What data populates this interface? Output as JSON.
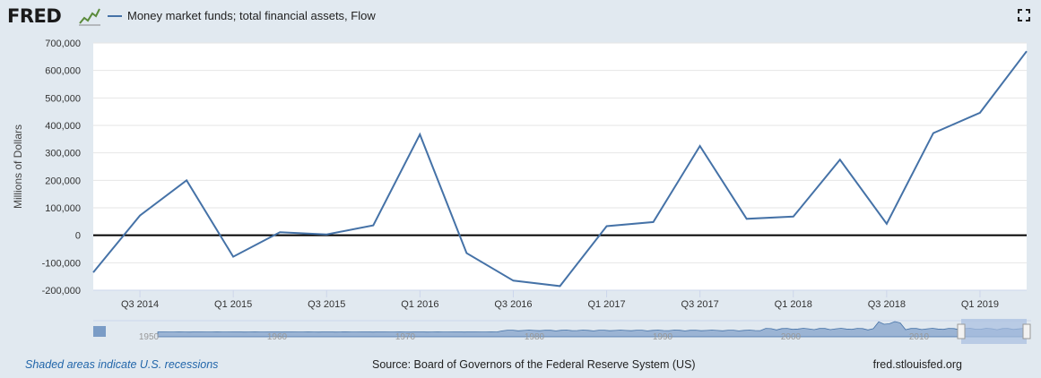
{
  "header": {
    "logo_text": "FRED",
    "legend_label": "Money market funds; total financial assets, Flow",
    "series_color": "#4572a7"
  },
  "chart_data": {
    "type": "line",
    "title": "",
    "ylabel": "Millions of Dollars",
    "ylim": [
      -200000,
      700000
    ],
    "yticks": [
      -200000,
      -100000,
      0,
      100000,
      200000,
      300000,
      400000,
      500000,
      600000,
      700000
    ],
    "ytick_labels": [
      "-200,000",
      "-100,000",
      "0",
      "100,000",
      "200,000",
      "300,000",
      "400,000",
      "500,000",
      "600,000",
      "700,000"
    ],
    "xtick_labels": [
      "Q3 2014",
      "Q1 2015",
      "Q3 2015",
      "Q1 2016",
      "Q3 2016",
      "Q1 2017",
      "Q3 2017",
      "Q1 2018",
      "Q3 2018",
      "Q1 2019"
    ],
    "xtick_positions": [
      "2014-Q3",
      "2015-Q1",
      "2015-Q3",
      "2016-Q1",
      "2016-Q3",
      "2017-Q1",
      "2017-Q3",
      "2018-Q1",
      "2018-Q3",
      "2019-Q1"
    ],
    "series": [
      {
        "name": "Money market funds; total financial assets, Flow",
        "x": [
          "2014-Q2",
          "2014-Q3",
          "2014-Q4",
          "2015-Q1",
          "2015-Q2",
          "2015-Q3",
          "2015-Q4",
          "2016-Q1",
          "2016-Q2",
          "2016-Q3",
          "2016-Q4",
          "2017-Q1",
          "2017-Q2",
          "2017-Q3",
          "2017-Q4",
          "2018-Q1",
          "2018-Q2",
          "2018-Q3",
          "2018-Q4",
          "2019-Q1",
          "2019-Q2"
        ],
        "values": [
          -135000,
          72000,
          200000,
          -78000,
          11000,
          3000,
          36000,
          367000,
          -65000,
          -165000,
          -185000,
          33000,
          48000,
          325000,
          60000,
          68000,
          275000,
          42000,
          372000,
          446000,
          670000
        ],
        "color": "#4572a7"
      }
    ],
    "zero_line": true,
    "grid": true
  },
  "navigator": {
    "labels": [
      "1950",
      "1960",
      "1970",
      "1980",
      "1990",
      "2000",
      "2010"
    ]
  },
  "footer": {
    "recession_note": "Shaded areas indicate U.S. recessions",
    "source": "Source: Board of Governors of the Federal Reserve System (US)",
    "site": "fred.stlouisfed.org"
  }
}
